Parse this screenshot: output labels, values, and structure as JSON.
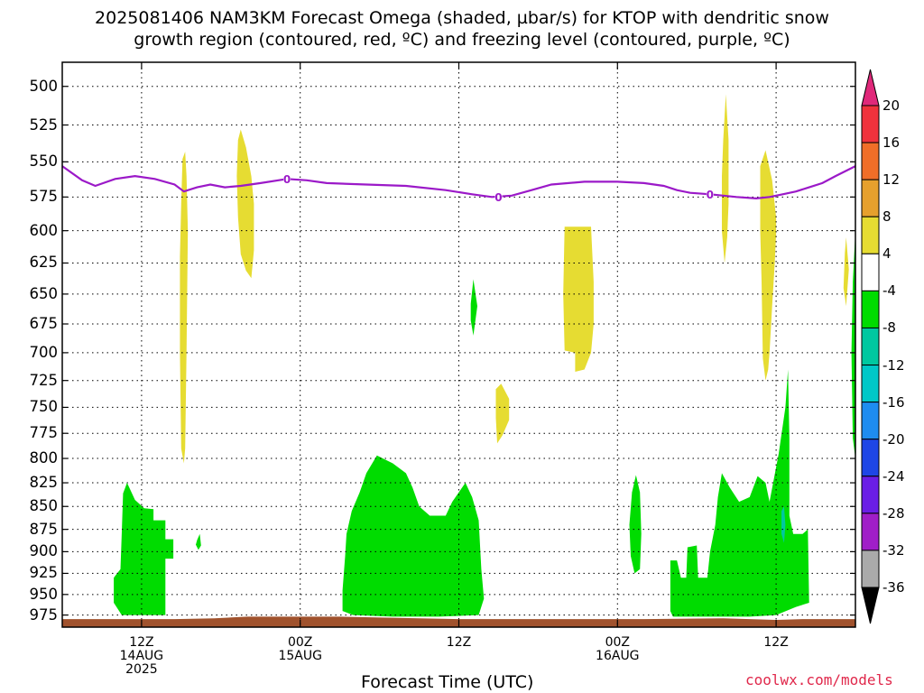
{
  "title": {
    "line1": "2025081406 NAM3KM Forecast Omega (shaded, µbar/s) for KTOP with dendritic snow",
    "line2": "growth region (contoured, red, ºC) and freezing level (contoured, purple, ºC)"
  },
  "xlabel": "Forecast Time (UTC)",
  "credit": "coolwx.com/models",
  "chart_data": {
    "type": "heatmap",
    "title": "2025081406 NAM3KM Forecast Omega (shaded, µbar/s) for KTOP with dendritic snow growth region (contoured, red, ºC) and freezing level (contoured, purple, ºC)",
    "xlabel": "Forecast Time (UTC)",
    "ylabel": "",
    "units": "µbar/s",
    "x_range_hours": [
      6,
      66
    ],
    "y_range_mb": [
      990,
      485
    ],
    "y_scale": "log-pressure (inverted)",
    "grid": true,
    "x_ticks": [
      {
        "hour": 12,
        "lines": [
          "12Z",
          "14AUG",
          "2025"
        ]
      },
      {
        "hour": 24,
        "lines": [
          "00Z",
          "15AUG"
        ]
      },
      {
        "hour": 36,
        "lines": [
          "12Z"
        ]
      },
      {
        "hour": 48,
        "lines": [
          "00Z",
          "16AUG"
        ]
      },
      {
        "hour": 60,
        "lines": [
          "12Z"
        ]
      }
    ],
    "y_ticks": [
      500,
      525,
      550,
      575,
      600,
      625,
      650,
      675,
      700,
      725,
      750,
      775,
      800,
      825,
      850,
      875,
      900,
      925,
      950,
      975
    ],
    "colorbar": {
      "labels": [
        "20",
        "16",
        "12",
        "8",
        "4",
        "-4",
        "-8",
        "-12",
        "-16",
        "-20",
        "-24",
        "-28",
        "-32",
        "-36"
      ],
      "bands": [
        {
          "from": 20,
          "to": 16,
          "color": "#f0323c"
        },
        {
          "from": 16,
          "to": 12,
          "color": "#f06e28"
        },
        {
          "from": 12,
          "to": 8,
          "color": "#e6a02d"
        },
        {
          "from": 8,
          "to": 4,
          "color": "#e6dc32"
        },
        {
          "from": 4,
          "to": -4,
          "color": "#ffffff"
        },
        {
          "from": -4,
          "to": -8,
          "color": "#00dc00"
        },
        {
          "from": -8,
          "to": -12,
          "color": "#00c8a0"
        },
        {
          "from": -12,
          "to": -16,
          "color": "#00c8c8"
        },
        {
          "from": -16,
          "to": -20,
          "color": "#1e8cf0"
        },
        {
          "from": -20,
          "to": -24,
          "color": "#1e46e6"
        },
        {
          "from": -24,
          "to": -28,
          "color": "#6a1ee6"
        },
        {
          "from": -28,
          "to": -32,
          "color": "#a01ec8"
        },
        {
          "from": -32,
          "to": -36,
          "color": "#aaaaaa"
        }
      ],
      "top_arrow_color": "#e0287a",
      "bottom_arrow_color": "#000000"
    },
    "freezing_level": {
      "contour_label": "0",
      "color": "#9b19c8",
      "points": [
        [
          6,
          553
        ],
        [
          7.5,
          563
        ],
        [
          8.5,
          567
        ],
        [
          10,
          562
        ],
        [
          11.5,
          560
        ],
        [
          13,
          562
        ],
        [
          14.5,
          566
        ],
        [
          15.2,
          571
        ],
        [
          16.2,
          568
        ],
        [
          17.2,
          566
        ],
        [
          18.3,
          568
        ],
        [
          19.5,
          567
        ],
        [
          21,
          565
        ],
        [
          23,
          562
        ],
        [
          24.5,
          563
        ],
        [
          26,
          565
        ],
        [
          29,
          566
        ],
        [
          32,
          567
        ],
        [
          35,
          570
        ],
        [
          37,
          573
        ],
        [
          38.5,
          575
        ],
        [
          40,
          574
        ],
        [
          41.5,
          570
        ],
        [
          43,
          566
        ],
        [
          45.5,
          564
        ],
        [
          48,
          564
        ],
        [
          50,
          565
        ],
        [
          51.5,
          567
        ],
        [
          52.5,
          570
        ],
        [
          53.5,
          572
        ],
        [
          55,
          573
        ],
        [
          57,
          575
        ],
        [
          58.5,
          576
        ],
        [
          59.5,
          575
        ],
        [
          60.5,
          573
        ],
        [
          61.5,
          571
        ],
        [
          62.5,
          568
        ],
        [
          63.5,
          565
        ],
        [
          64.5,
          560
        ],
        [
          66,
          553
        ]
      ]
    },
    "omega_regions": [
      {
        "band": "4 to 8",
        "color": "#e6dc32",
        "points": [
          [
            15.0,
            580
          ],
          [
            15.1,
            548
          ],
          [
            15.3,
            543
          ],
          [
            15.4,
            560
          ],
          [
            15.5,
            600
          ],
          [
            15.4,
            700
          ],
          [
            15.3,
            790
          ],
          [
            15.2,
            805
          ],
          [
            15.0,
            790
          ],
          [
            14.9,
            700
          ],
          [
            14.9,
            620
          ]
        ]
      },
      {
        "band": "4 to 8",
        "color": "#e6dc32",
        "points": [
          [
            19.3,
            535
          ],
          [
            19.5,
            528
          ],
          [
            19.9,
            540
          ],
          [
            20.3,
            560
          ],
          [
            20.5,
            580
          ],
          [
            20.5,
            615
          ],
          [
            20.3,
            637
          ],
          [
            19.9,
            631
          ],
          [
            19.5,
            618
          ],
          [
            19.3,
            590
          ],
          [
            19.2,
            560
          ]
        ]
      },
      {
        "band": "4 to 8",
        "color": "#e6dc32",
        "points": [
          [
            44.0,
            597
          ],
          [
            46.0,
            597
          ],
          [
            46.2,
            640
          ],
          [
            46.2,
            675
          ],
          [
            46.0,
            700
          ],
          [
            45.5,
            715
          ],
          [
            44.8,
            717
          ],
          [
            44.8,
            700
          ],
          [
            44.0,
            698
          ],
          [
            43.9,
            650
          ]
        ]
      },
      {
        "band": "4 to 8",
        "color": "#e6dc32",
        "points": [
          [
            38.8,
            733
          ],
          [
            39.2,
            728
          ],
          [
            39.8,
            742
          ],
          [
            39.8,
            762
          ],
          [
            39.3,
            777
          ],
          [
            38.9,
            785
          ],
          [
            38.8,
            760
          ]
        ]
      },
      {
        "band": "4 to 8",
        "color": "#e6dc32",
        "points": [
          [
            56.0,
            535
          ],
          [
            56.2,
            505
          ],
          [
            56.4,
            535
          ],
          [
            56.4,
            580
          ],
          [
            56.3,
            605
          ],
          [
            56.1,
            625
          ],
          [
            55.9,
            600
          ],
          [
            55.9,
            560
          ]
        ]
      },
      {
        "band": "4 to 8",
        "color": "#e6dc32",
        "points": [
          [
            58.8,
            553
          ],
          [
            59.2,
            542
          ],
          [
            59.7,
            563
          ],
          [
            60.0,
            590
          ],
          [
            60.0,
            602
          ],
          [
            59.9,
            625
          ],
          [
            59.7,
            660
          ],
          [
            59.5,
            700
          ],
          [
            59.4,
            715
          ],
          [
            59.2,
            725
          ],
          [
            59.0,
            705
          ],
          [
            58.9,
            640
          ],
          [
            58.8,
            600
          ]
        ]
      },
      {
        "band": "4 to 8",
        "color": "#e6dc32",
        "points": [
          [
            65.2,
            617
          ],
          [
            65.3,
            605
          ],
          [
            65.5,
            630
          ],
          [
            65.3,
            660
          ],
          [
            65.1,
            645
          ]
        ]
      },
      {
        "band": "-4 to -8",
        "color": "#00dc00",
        "points": [
          [
            9.9,
            960
          ],
          [
            9.9,
            930
          ],
          [
            10.4,
            920
          ],
          [
            10.5,
            880
          ],
          [
            10.6,
            836
          ],
          [
            10.9,
            825
          ],
          [
            11.5,
            843
          ],
          [
            12.2,
            852
          ],
          [
            12.9,
            853
          ],
          [
            12.9,
            865
          ],
          [
            13.8,
            865
          ],
          [
            13.8,
            886
          ],
          [
            14.4,
            886
          ],
          [
            14.4,
            908
          ],
          [
            13.8,
            908
          ],
          [
            13.8,
            975
          ],
          [
            11.5,
            975
          ],
          [
            10.5,
            975
          ]
        ]
      },
      {
        "band": "-4 to -8",
        "color": "#00dc00",
        "points": [
          [
            16.2,
            887
          ],
          [
            16.4,
            880
          ],
          [
            16.5,
            893
          ],
          [
            16.3,
            898
          ],
          [
            16.1,
            892
          ]
        ]
      },
      {
        "band": "-4 to -8",
        "color": "#00dc00",
        "points": [
          [
            27.2,
            945
          ],
          [
            27.4,
            905
          ],
          [
            27.5,
            880
          ],
          [
            27.9,
            855
          ],
          [
            28.5,
            835
          ],
          [
            29.0,
            815
          ],
          [
            29.8,
            797
          ],
          [
            31.0,
            805
          ],
          [
            32.0,
            815
          ],
          [
            32.5,
            830
          ],
          [
            33.0,
            850
          ],
          [
            33.8,
            860
          ],
          [
            35.0,
            860
          ],
          [
            35.5,
            845
          ],
          [
            36.5,
            825
          ],
          [
            37.0,
            840
          ],
          [
            37.5,
            865
          ],
          [
            37.7,
            920
          ],
          [
            37.9,
            955
          ],
          [
            37.5,
            975
          ],
          [
            34.5,
            977
          ],
          [
            31.0,
            977
          ],
          [
            28.0,
            975
          ],
          [
            27.2,
            970
          ]
        ]
      },
      {
        "band": "-4 to -8",
        "color": "#00dc00",
        "points": [
          [
            36.9,
            658
          ],
          [
            37.1,
            638
          ],
          [
            37.4,
            660
          ],
          [
            37.1,
            685
          ],
          [
            36.9,
            672
          ]
        ]
      },
      {
        "band": "-4 to -8",
        "color": "#00dc00",
        "points": [
          [
            49.1,
            835
          ],
          [
            49.4,
            817
          ],
          [
            49.7,
            835
          ],
          [
            49.8,
            880
          ],
          [
            49.7,
            920
          ],
          [
            49.3,
            925
          ],
          [
            49.0,
            905
          ],
          [
            48.9,
            870
          ]
        ]
      },
      {
        "band": "-4 to -8",
        "color": "#00dc00",
        "points": [
          [
            52.0,
            910
          ],
          [
            52.5,
            910
          ],
          [
            52.8,
            930
          ],
          [
            53.2,
            930
          ],
          [
            53.3,
            895
          ],
          [
            54.0,
            893
          ],
          [
            54.1,
            930
          ],
          [
            54.8,
            930
          ],
          [
            55.0,
            900
          ],
          [
            55.4,
            870
          ],
          [
            55.6,
            840
          ],
          [
            55.9,
            815
          ],
          [
            56.5,
            830
          ],
          [
            57.2,
            845
          ],
          [
            58.0,
            840
          ],
          [
            58.6,
            818
          ],
          [
            59.2,
            825
          ],
          [
            59.5,
            845
          ],
          [
            60.2,
            795
          ],
          [
            60.7,
            750
          ],
          [
            60.9,
            715
          ],
          [
            61.0,
            780
          ],
          [
            61.0,
            860
          ],
          [
            61.3,
            880
          ],
          [
            62.0,
            880
          ],
          [
            62.4,
            875
          ],
          [
            62.5,
            960
          ],
          [
            61.5,
            965
          ],
          [
            60.0,
            975
          ],
          [
            58.0,
            977
          ],
          [
            55.0,
            977
          ],
          [
            52.2,
            977
          ],
          [
            52.0,
            970
          ]
        ]
      },
      {
        "band": "-4 to -8",
        "color": "#00dc00",
        "points": [
          [
            66.0,
            600
          ],
          [
            65.8,
            640
          ],
          [
            65.7,
            700
          ],
          [
            65.8,
            780
          ],
          [
            66.0,
            800
          ]
        ]
      },
      {
        "band": "-8 to -12",
        "color": "#00c8a0",
        "points": [
          [
            60.4,
            855
          ],
          [
            60.6,
            850
          ],
          [
            60.7,
            870
          ],
          [
            60.6,
            890
          ],
          [
            60.4,
            880
          ]
        ]
      }
    ],
    "surface_layer": {
      "color": "#a0522d",
      "points": [
        [
          6,
          980
        ],
        [
          14.5,
          980
        ],
        [
          17.5,
          979
        ],
        [
          20,
          977
        ],
        [
          27,
          977
        ],
        [
          33,
          979
        ],
        [
          36,
          980
        ],
        [
          50,
          980
        ],
        [
          56,
          979
        ],
        [
          58,
          980
        ],
        [
          60,
          981
        ],
        [
          62,
          980
        ],
        [
          66,
          980
        ]
      ]
    }
  }
}
